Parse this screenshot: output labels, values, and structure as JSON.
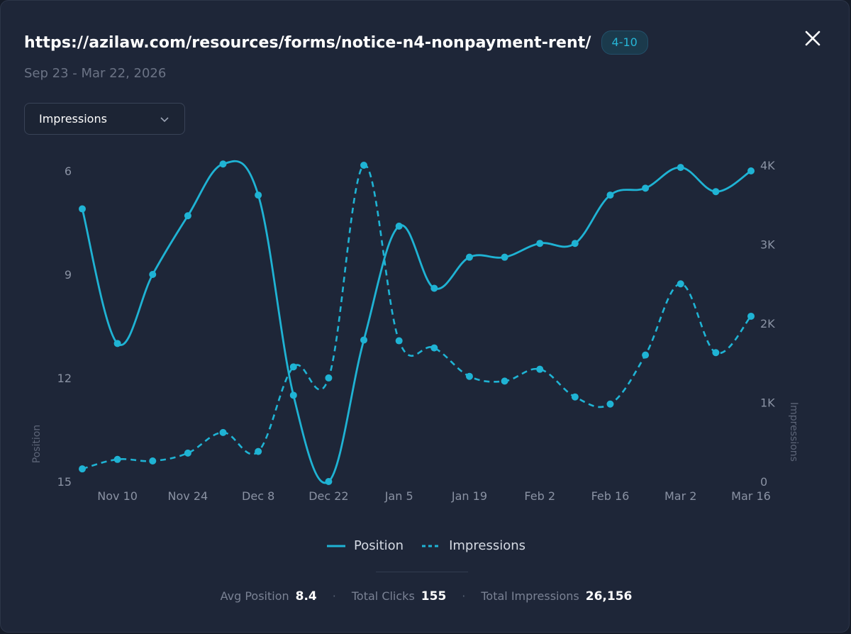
{
  "header": {
    "url": "https://azilaw.com/resources/forms/notice-n4-nonpayment-rent/",
    "badge": "4-10",
    "date_range": "Sep 23 - Mar 22, 2026"
  },
  "metric_select": {
    "value": "Impressions"
  },
  "colors": {
    "background": "#1e2638",
    "accent": "#1fb3d4",
    "text": "#ffffff",
    "muted": "#6b7385"
  },
  "icons": {
    "close": "close-icon",
    "dropdown": "chevron-down-icon"
  },
  "chart_data": {
    "type": "line",
    "x": [
      "Nov 3",
      "Nov 10",
      "Nov 17",
      "Nov 24",
      "Dec 1",
      "Dec 8",
      "Dec 15",
      "Dec 22",
      "Dec 29",
      "Jan 5",
      "Jan 12",
      "Jan 19",
      "Jan 26",
      "Feb 2",
      "Feb 9",
      "Feb 16",
      "Feb 23",
      "Mar 2",
      "Mar 9",
      "Mar 16"
    ],
    "x_tick_labels": [
      "Nov 10",
      "Nov 24",
      "Dec 8",
      "Dec 22",
      "Jan 5",
      "Jan 19",
      "Feb 2",
      "Feb 16",
      "Mar 2",
      "Mar 16"
    ],
    "left_axis": {
      "label": "Position",
      "ticks": [
        "6",
        "9",
        "12",
        "15"
      ],
      "range": [
        15,
        6
      ],
      "inverted": true
    },
    "right_axis": {
      "label": "Impressions",
      "ticks": [
        "0",
        "1K",
        "2K",
        "3K",
        "4K"
      ],
      "range": [
        0,
        4000
      ]
    },
    "series": [
      {
        "name": "Position",
        "axis": "left",
        "style": "solid",
        "values": [
          7.1,
          11.0,
          9.0,
          7.3,
          5.8,
          6.7,
          12.5,
          15.0,
          10.9,
          7.6,
          9.4,
          8.5,
          8.5,
          8.1,
          8.1,
          6.7,
          6.5,
          5.9,
          6.6,
          6.0
        ]
      },
      {
        "name": "Impressions",
        "axis": "right",
        "style": "dashed",
        "values": [
          160,
          280,
          260,
          360,
          620,
          380,
          1450,
          1310,
          4000,
          1780,
          1690,
          1330,
          1270,
          1420,
          1070,
          980,
          1600,
          2500,
          1630,
          2090
        ]
      }
    ],
    "grid": false,
    "legend_position": "bottom"
  },
  "legend": {
    "position": "Position",
    "impressions": "Impressions"
  },
  "stats": [
    {
      "label": "Avg Position",
      "value": "8.4"
    },
    {
      "label": "Total Clicks",
      "value": "155"
    },
    {
      "label": "Total Impressions",
      "value": "26,156"
    }
  ],
  "stat_separator": "·"
}
